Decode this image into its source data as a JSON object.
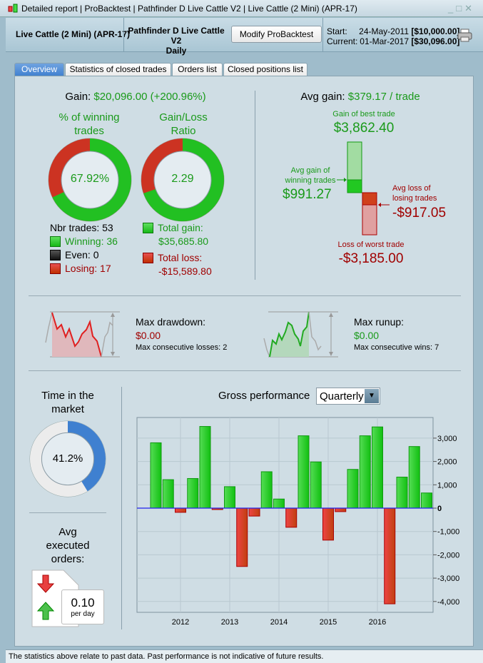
{
  "window": {
    "title": "Detailed report | ProBacktest | Pathfinder D Live Cattle V2 | Live Cattle (2 Mini) (APR-17)",
    "controls": [
      "_",
      "□",
      "✕"
    ]
  },
  "header": {
    "instrument": "Live Cattle (2 Mini) (APR-17)",
    "system": "Pathfinder D Live Cattle V2",
    "timeframe": "Daily",
    "modify_label": "Modify ProBacktest",
    "start_label": "Start:",
    "start_date": "24-May-2011",
    "start_value": "[$10,000.00]",
    "current_label": "Current:",
    "current_date": "01-Mar-2017",
    "current_value": "[$30,096.00]"
  },
  "tabs": [
    {
      "label": "Overview",
      "active": true
    },
    {
      "label": "Statistics of closed trades"
    },
    {
      "label": "Orders list"
    },
    {
      "label": "Closed positions list"
    }
  ],
  "overview": {
    "gain_label": "Gain:",
    "gain_value": "$20,096.00 (+200.96%)",
    "win_title_1": "% of winning",
    "win_title_2": "trades",
    "win_pct": "67.92%",
    "win_fraction": 0.6792,
    "ratio_title_1": "Gain/Loss",
    "ratio_title_2": "Ratio",
    "ratio_value": "2.29",
    "ratio_fraction": 0.696,
    "nbr_trades": "Nbr trades: 53",
    "winning": "Winning: 36",
    "even": "Even: 0",
    "losing": "Losing: 17",
    "total_gain_label": "Total gain:",
    "total_gain": "$35,685.80",
    "total_loss_label": "Total loss:",
    "total_loss": "-$15,589.80",
    "avg_gain_label": "Avg gain:",
    "avg_gain_value": "$379.17 / trade",
    "best_label": "Gain of best trade",
    "best_value": "$3,862.40",
    "avg_win_label_1": "Avg gain of",
    "avg_win_label_2": "winning trades",
    "avg_win_value": "$991.27",
    "avg_loss_label_1": "Avg loss of",
    "avg_loss_label_2": "losing trades",
    "avg_loss_value": "-$917.05",
    "worst_label": "Loss of worst trade",
    "worst_value": "-$3,185.00",
    "drawdown_label": "Max drawdown:",
    "drawdown_value": "$0.00",
    "max_losses": "Max consecutive losses: 2",
    "runup_label": "Max runup:",
    "runup_value": "$0.00",
    "max_wins": "Max consecutive wins: 7",
    "time_title_1": "Time in the",
    "time_title_2": "market",
    "time_pct": "41.2%",
    "time_fraction": 0.412,
    "orders_title_1": "Avg",
    "orders_title_2": "executed",
    "orders_title_3": "orders:",
    "orders_value": "0.10",
    "orders_unit": "per day",
    "perf_label": "Gross performance",
    "perf_period": "Quarterly"
  },
  "colors": {
    "green": "#1a9a1a",
    "red": "#a00000",
    "blue": "#3f7fcf"
  },
  "chart_data": {
    "type": "bar",
    "title": "Gross performance",
    "x_ticks": [
      "2012",
      "2013",
      "2014",
      "2015",
      "2016"
    ],
    "y_ticks": [
      "3,000",
      "2,000",
      "1,000",
      "0",
      "-1,000",
      "-2,000",
      "-3,000",
      "-4,000"
    ],
    "ylim": [
      -4500,
      3900
    ],
    "values": [
      2800,
      1220,
      -180,
      1270,
      3500,
      -60,
      920,
      -2500,
      -340,
      1560,
      390,
      -820,
      3100,
      1980,
      -1370,
      -150,
      1660,
      3100,
      3480,
      -4100,
      1330,
      2640,
      650
    ]
  },
  "status": "The statistics above relate to past data. Past performance is not indicative of future results."
}
